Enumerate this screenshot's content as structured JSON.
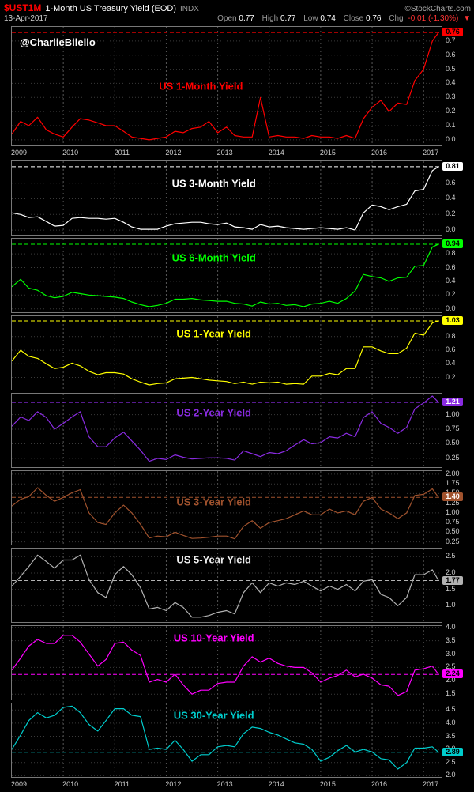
{
  "header": {
    "symbol": "$UST1M",
    "title": "1-Month US Treasury Yield (EOD)",
    "exchange": "INDX",
    "copyright": "©StockCharts.com",
    "date": "13-Apr-2017",
    "quote": {
      "open_label": "Open",
      "open": "0.77",
      "high_label": "High",
      "high": "0.77",
      "low_label": "Low",
      "low": "0.74",
      "close_label": "Close",
      "close": "0.76",
      "chg_label": "Chg",
      "chg": "-0.01 (-1.30%)",
      "chg_arrow": "▼"
    }
  },
  "watermark": "@CharlieBilello",
  "x_axis": {
    "years": [
      "2009",
      "2010",
      "2011",
      "2012",
      "2013",
      "2014",
      "2015",
      "2016",
      "2017"
    ]
  },
  "chart_x": [
    2009.0,
    2009.17,
    2009.33,
    2009.5,
    2009.67,
    2009.83,
    2010.0,
    2010.17,
    2010.33,
    2010.5,
    2010.67,
    2010.83,
    2011.0,
    2011.17,
    2011.33,
    2011.5,
    2011.67,
    2011.83,
    2012.0,
    2012.17,
    2012.33,
    2012.5,
    2012.67,
    2012.83,
    2013.0,
    2013.17,
    2013.33,
    2013.5,
    2013.67,
    2013.83,
    2014.0,
    2014.17,
    2014.33,
    2014.5,
    2014.67,
    2014.83,
    2015.0,
    2015.17,
    2015.33,
    2015.5,
    2015.67,
    2015.83,
    2016.0,
    2016.17,
    2016.33,
    2016.5,
    2016.67,
    2016.83,
    2017.0,
    2017.17,
    2017.29
  ],
  "chart_data": [
    {
      "type": "line",
      "title": "US 1-Month Yield",
      "color": "#ff0000",
      "title_color": "#ff0000",
      "box_text_color": "#000000",
      "last_value": 0.76,
      "last_label": "0.76",
      "ylim": [
        -0.04,
        0.8
      ],
      "yticks": [
        0.7,
        0.6,
        0.5,
        0.4,
        0.3,
        0.2,
        0.1,
        0.0
      ],
      "tick_decimals": 1,
      "title_pos": [
        0.44,
        0.5
      ],
      "xlabel": "",
      "ylabel": "",
      "values": [
        0.04,
        0.13,
        0.1,
        0.16,
        0.07,
        0.04,
        0.02,
        0.09,
        0.15,
        0.14,
        0.12,
        0.1,
        0.1,
        0.06,
        0.02,
        0.01,
        0.0,
        0.01,
        0.02,
        0.06,
        0.05,
        0.08,
        0.09,
        0.13,
        0.05,
        0.09,
        0.03,
        0.02,
        0.02,
        0.3,
        0.02,
        0.03,
        0.02,
        0.02,
        0.01,
        0.03,
        0.02,
        0.02,
        0.01,
        0.03,
        0.01,
        0.15,
        0.23,
        0.28,
        0.2,
        0.26,
        0.25,
        0.42,
        0.5,
        0.7,
        0.76
      ]
    },
    {
      "type": "line",
      "title": "US 3-Month Yield",
      "color": "#ffffff",
      "title_color": "#ffffff",
      "box_text_color": "#000000",
      "last_value": 0.81,
      "last_label": "0.81",
      "ylim": [
        -0.06,
        0.88
      ],
      "yticks": [
        0.6,
        0.4,
        0.2,
        0.0
      ],
      "tick_decimals": 1,
      "title_pos": [
        0.47,
        0.3
      ],
      "xlabel": "",
      "ylabel": "",
      "values": [
        0.22,
        0.2,
        0.16,
        0.17,
        0.11,
        0.05,
        0.06,
        0.15,
        0.16,
        0.15,
        0.15,
        0.14,
        0.15,
        0.1,
        0.04,
        0.01,
        0.01,
        0.01,
        0.05,
        0.08,
        0.09,
        0.1,
        0.1,
        0.08,
        0.07,
        0.09,
        0.04,
        0.03,
        0.01,
        0.07,
        0.04,
        0.05,
        0.03,
        0.02,
        0.01,
        0.02,
        0.03,
        0.02,
        0.01,
        0.03,
        0.0,
        0.22,
        0.32,
        0.3,
        0.26,
        0.3,
        0.33,
        0.5,
        0.52,
        0.76,
        0.81
      ]
    },
    {
      "type": "line",
      "title": "US 6-Month Yield",
      "color": "#00ff00",
      "title_color": "#00ff00",
      "box_text_color": "#000000",
      "last_value": 0.94,
      "last_label": "0.94",
      "ylim": [
        -0.05,
        1.02
      ],
      "yticks": [
        0.8,
        0.6,
        0.4,
        0.2,
        0.0
      ],
      "tick_decimals": 1,
      "title_pos": [
        0.47,
        0.26
      ],
      "xlabel": "",
      "ylabel": "",
      "values": [
        0.32,
        0.43,
        0.3,
        0.27,
        0.19,
        0.16,
        0.18,
        0.24,
        0.22,
        0.2,
        0.19,
        0.18,
        0.17,
        0.15,
        0.1,
        0.06,
        0.03,
        0.05,
        0.08,
        0.14,
        0.14,
        0.15,
        0.13,
        0.12,
        0.11,
        0.11,
        0.08,
        0.07,
        0.04,
        0.1,
        0.07,
        0.08,
        0.05,
        0.06,
        0.03,
        0.07,
        0.08,
        0.11,
        0.08,
        0.15,
        0.26,
        0.5,
        0.47,
        0.45,
        0.4,
        0.45,
        0.46,
        0.62,
        0.63,
        0.9,
        0.94
      ]
    },
    {
      "type": "line",
      "title": "US 1-Year Yield",
      "color": "#ffff00",
      "title_color": "#ffff00",
      "box_text_color": "#000000",
      "last_value": 1.03,
      "last_label": "1.03",
      "ylim": [
        0.02,
        1.1
      ],
      "yticks": [
        0.8,
        0.6,
        0.4,
        0.2
      ],
      "tick_decimals": 1,
      "title_pos": [
        0.47,
        0.24
      ],
      "xlabel": "",
      "ylabel": "",
      "values": [
        0.44,
        0.6,
        0.51,
        0.48,
        0.4,
        0.33,
        0.35,
        0.41,
        0.37,
        0.29,
        0.24,
        0.27,
        0.27,
        0.25,
        0.18,
        0.13,
        0.09,
        0.11,
        0.12,
        0.18,
        0.19,
        0.2,
        0.18,
        0.16,
        0.15,
        0.14,
        0.11,
        0.13,
        0.1,
        0.13,
        0.12,
        0.13,
        0.1,
        0.11,
        0.1,
        0.22,
        0.22,
        0.26,
        0.24,
        0.33,
        0.33,
        0.65,
        0.65,
        0.59,
        0.55,
        0.55,
        0.63,
        0.85,
        0.82,
        1.0,
        1.03
      ]
    },
    {
      "type": "line",
      "title": "US 2-Year Yield",
      "color": "#8a2be2",
      "title_color": "#8a2be2",
      "box_text_color": "#ffffff",
      "last_value": 1.21,
      "last_label": "1.21",
      "ylim": [
        0.1,
        1.36
      ],
      "yticks": [
        1.0,
        0.75,
        0.5,
        0.25
      ],
      "tick_decimals": 2,
      "title_pos": [
        0.47,
        0.26
      ],
      "xlabel": "",
      "ylabel": "",
      "values": [
        0.8,
        0.96,
        0.9,
        1.05,
        0.95,
        0.75,
        0.85,
        0.96,
        1.05,
        0.62,
        0.45,
        0.45,
        0.6,
        0.7,
        0.55,
        0.39,
        0.2,
        0.25,
        0.23,
        0.31,
        0.27,
        0.24,
        0.25,
        0.26,
        0.26,
        0.25,
        0.22,
        0.38,
        0.33,
        0.28,
        0.35,
        0.33,
        0.38,
        0.48,
        0.57,
        0.5,
        0.52,
        0.62,
        0.6,
        0.68,
        0.62,
        0.95,
        1.05,
        0.85,
        0.78,
        0.68,
        0.78,
        1.1,
        1.2,
        1.32,
        1.21
      ]
    },
    {
      "type": "line",
      "title": "US 3-Year Yield",
      "color": "#a0522d",
      "title_color": "#a0522d",
      "box_text_color": "#ffffff",
      "last_value": 1.4,
      "last_label": "1.40",
      "ylim": [
        0.18,
        2.08
      ],
      "yticks": [
        2.0,
        1.75,
        1.5,
        1.25,
        1.0,
        0.75,
        0.5,
        0.25
      ],
      "tick_decimals": 2,
      "title_pos": [
        0.47,
        0.42
      ],
      "xlabel": "",
      "ylabel": "",
      "values": [
        1.18,
        1.35,
        1.42,
        1.65,
        1.45,
        1.3,
        1.4,
        1.52,
        1.6,
        1.0,
        0.75,
        0.7,
        1.0,
        1.2,
        1.0,
        0.7,
        0.35,
        0.4,
        0.38,
        0.5,
        0.42,
        0.34,
        0.35,
        0.37,
        0.4,
        0.4,
        0.33,
        0.65,
        0.8,
        0.6,
        0.75,
        0.8,
        0.85,
        0.95,
        1.05,
        0.95,
        0.95,
        1.1,
        1.0,
        1.05,
        0.95,
        1.3,
        1.4,
        1.1,
        1.0,
        0.85,
        1.0,
        1.45,
        1.48,
        1.62,
        1.4
      ]
    },
    {
      "type": "line",
      "title": "US 5-Year Yield",
      "color": "#b2b2b2",
      "title_color": "#eeeeee",
      "box_text_color": "#000000",
      "last_value": 1.77,
      "last_label": "1.77",
      "ylim": [
        0.5,
        2.75
      ],
      "yticks": [
        2.5,
        2.0,
        1.5,
        1.0
      ],
      "tick_decimals": 1,
      "title_pos": [
        0.47,
        0.15
      ],
      "xlabel": "",
      "ylabel": "",
      "values": [
        1.6,
        1.9,
        2.2,
        2.55,
        2.35,
        2.15,
        2.4,
        2.4,
        2.55,
        1.8,
        1.4,
        1.25,
        1.95,
        2.2,
        1.95,
        1.55,
        0.9,
        0.95,
        0.85,
        1.1,
        0.95,
        0.65,
        0.65,
        0.7,
        0.8,
        0.85,
        0.75,
        1.4,
        1.7,
        1.4,
        1.7,
        1.6,
        1.7,
        1.65,
        1.75,
        1.6,
        1.45,
        1.6,
        1.5,
        1.65,
        1.45,
        1.75,
        1.8,
        1.35,
        1.25,
        1.0,
        1.25,
        1.95,
        1.95,
        2.1,
        1.77
      ]
    },
    {
      "type": "line",
      "title": "US 10-Year Yield",
      "color": "#ff00ff",
      "title_color": "#ff00ff",
      "box_text_color": "#000000",
      "last_value": 2.24,
      "last_label": "2.24",
      "ylim": [
        1.3,
        4.05
      ],
      "yticks": [
        4.0,
        3.5,
        3.0,
        2.5,
        2.0,
        1.5
      ],
      "tick_decimals": 1,
      "title_pos": [
        0.47,
        0.16
      ],
      "xlabel": "",
      "ylabel": "",
      "values": [
        2.4,
        2.85,
        3.3,
        3.55,
        3.4,
        3.4,
        3.7,
        3.7,
        3.45,
        3.0,
        2.55,
        2.8,
        3.4,
        3.45,
        3.15,
        2.95,
        1.95,
        2.05,
        1.95,
        2.25,
        1.85,
        1.5,
        1.65,
        1.65,
        1.9,
        1.95,
        1.95,
        2.55,
        2.9,
        2.7,
        2.85,
        2.65,
        2.55,
        2.5,
        2.5,
        2.3,
        1.95,
        2.1,
        2.2,
        2.4,
        2.15,
        2.25,
        2.1,
        1.85,
        1.8,
        1.45,
        1.6,
        2.4,
        2.45,
        2.55,
        2.24
      ]
    },
    {
      "type": "line",
      "title": "US 30-Year Yield",
      "color": "#00cdcd",
      "title_color": "#00cdcd",
      "box_text_color": "#000000",
      "last_value": 2.89,
      "last_label": "2.89",
      "ylim": [
        1.95,
        4.75
      ],
      "yticks": [
        4.5,
        4.0,
        3.5,
        3.0,
        2.5,
        2.0
      ],
      "tick_decimals": 1,
      "title_pos": [
        0.47,
        0.16
      ],
      "xlabel": "",
      "ylabel": "",
      "values": [
        3.0,
        3.55,
        4.1,
        4.4,
        4.2,
        4.3,
        4.6,
        4.65,
        4.4,
        3.95,
        3.7,
        4.1,
        4.55,
        4.55,
        4.3,
        4.25,
        3.0,
        3.05,
        3.0,
        3.35,
        3.0,
        2.55,
        2.8,
        2.8,
        3.1,
        3.15,
        3.1,
        3.6,
        3.85,
        3.8,
        3.65,
        3.55,
        3.4,
        3.25,
        3.2,
        3.0,
        2.55,
        2.7,
        2.95,
        3.15,
        2.9,
        3.0,
        2.9,
        2.65,
        2.6,
        2.25,
        2.5,
        3.05,
        3.05,
        3.1,
        2.89
      ]
    }
  ]
}
